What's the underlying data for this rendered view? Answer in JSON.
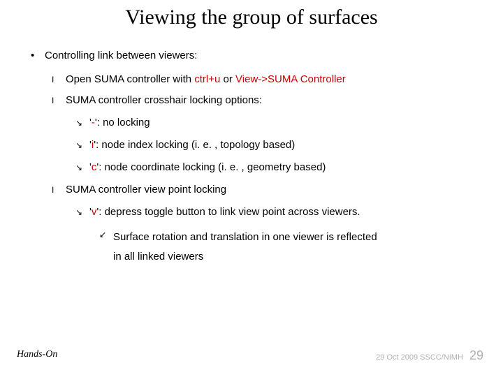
{
  "title": "Viewing the group of surfaces",
  "bullet_l1": "•",
  "bullet_l2": "I",
  "bullet_l3": "↘",
  "bullet_l4": "↙",
  "colors": {
    "highlight": "#cc0000",
    "text": "#000000",
    "footer": "#b0b0b0",
    "background": "#ffffff"
  },
  "fonts": {
    "title_family": "Times New Roman",
    "title_size_pt": 30,
    "body_family": "Arial",
    "body_size_pt": 15,
    "footer_size_pt": 11
  },
  "l1_text": "Controlling link between viewers:",
  "l2a_pre": "Open SUMA controller with ",
  "l2a_hl1": "ctrl+u",
  "l2a_mid": " or  ",
  "l2a_hl2": "View->SUMA Controller",
  "l2b": "SUMA controller crosshair locking options:",
  "l3a_pre": "'",
  "l3a_hl": "-",
  "l3a_post": "': no locking",
  "l3b_pre": "'",
  "l3b_hl": "i",
  "l3b_post": "': node index locking (i. e. , topology based)",
  "l3c_pre": "'",
  "l3c_hl": "c",
  "l3c_post": "': node coordinate locking (i. e. , geometry based)",
  "l2c": "SUMA controller view point locking",
  "l3d_pre": "'",
  "l3d_hl": "v",
  "l3d_post": "': depress toggle button to link view point across viewers.",
  "l4a": "Surface rotation and translation in one viewer is reflected",
  "l4a_cont": "in all linked viewers",
  "footer_left": "Hands-On",
  "footer_date": "29 Oct 2009",
  "footer_org": "SSCC/NIMH",
  "page_num": "29"
}
